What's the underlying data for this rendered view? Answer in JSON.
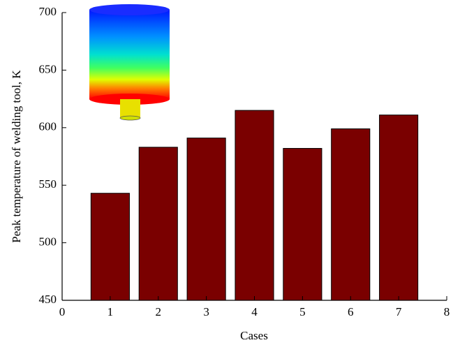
{
  "chart_data": {
    "type": "bar",
    "x_label": "Cases",
    "y_label": "Peak temperature of welding tool, K",
    "x": [
      1,
      2,
      3,
      4,
      5,
      6,
      7
    ],
    "values": [
      543,
      583,
      591,
      615,
      582,
      599,
      611
    ],
    "color": "#7a0000",
    "xlim": [
      0,
      8
    ],
    "xticks": [
      0,
      1,
      2,
      3,
      4,
      5,
      6,
      7,
      8
    ],
    "ylim": [
      450,
      700
    ],
    "yticks": [
      450,
      500,
      550,
      600,
      650,
      700
    ]
  }
}
